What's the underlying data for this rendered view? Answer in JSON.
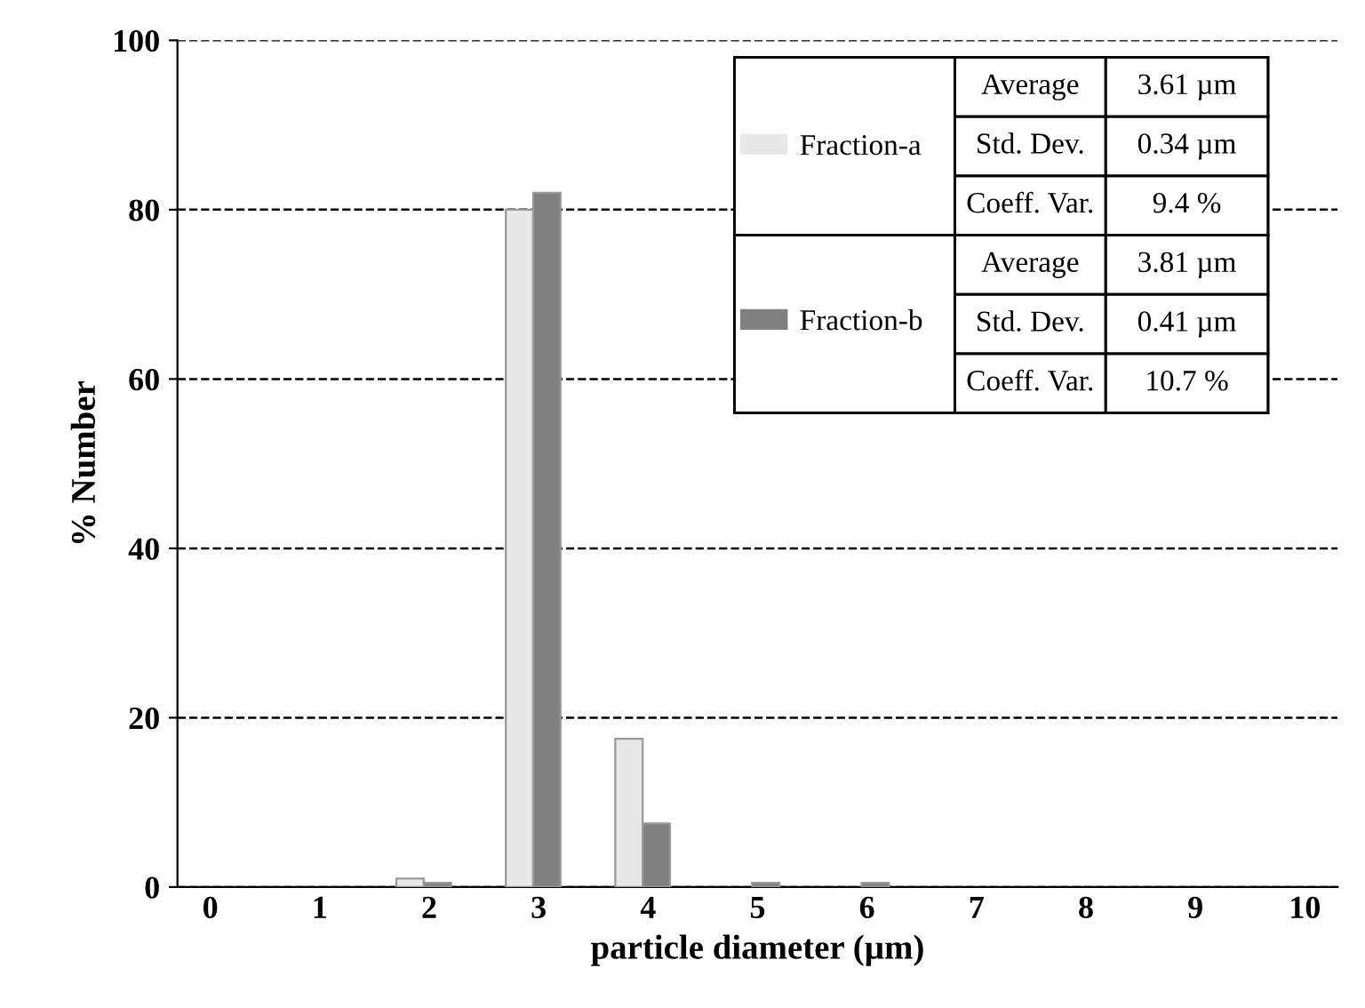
{
  "chart_data": {
    "type": "bar",
    "xlabel": "particle diameter (µm)",
    "ylabel": "% Number",
    "categories": [
      "0",
      "1",
      "2",
      "3",
      "4",
      "5",
      "6",
      "7",
      "8",
      "9",
      "10"
    ],
    "series": [
      {
        "name": "Fraction-a",
        "color": "#e8e8e8",
        "values": [
          null,
          null,
          1,
          80,
          17.5,
          null,
          null,
          null,
          null,
          null,
          null
        ]
      },
      {
        "name": "Fraction-b",
        "color": "#808080",
        "values": [
          null,
          null,
          0.5,
          82,
          7.5,
          0.5,
          0.5,
          null,
          null,
          null,
          null
        ]
      }
    ],
    "ylim": [
      0,
      100
    ],
    "yticks": [
      0,
      20,
      40,
      60,
      80,
      100
    ],
    "grid": "y",
    "legend": "top right",
    "annotations": [
      "Average",
      "3.61 µm",
      "Std. Dev.",
      "0.34 µm",
      "Coeff. Var.",
      "9.4 %",
      "Average",
      "3.81 µm",
      "Std. Dev.",
      "0.41 µm",
      "Coeff. Var.",
      "10.7 %"
    ]
  }
}
